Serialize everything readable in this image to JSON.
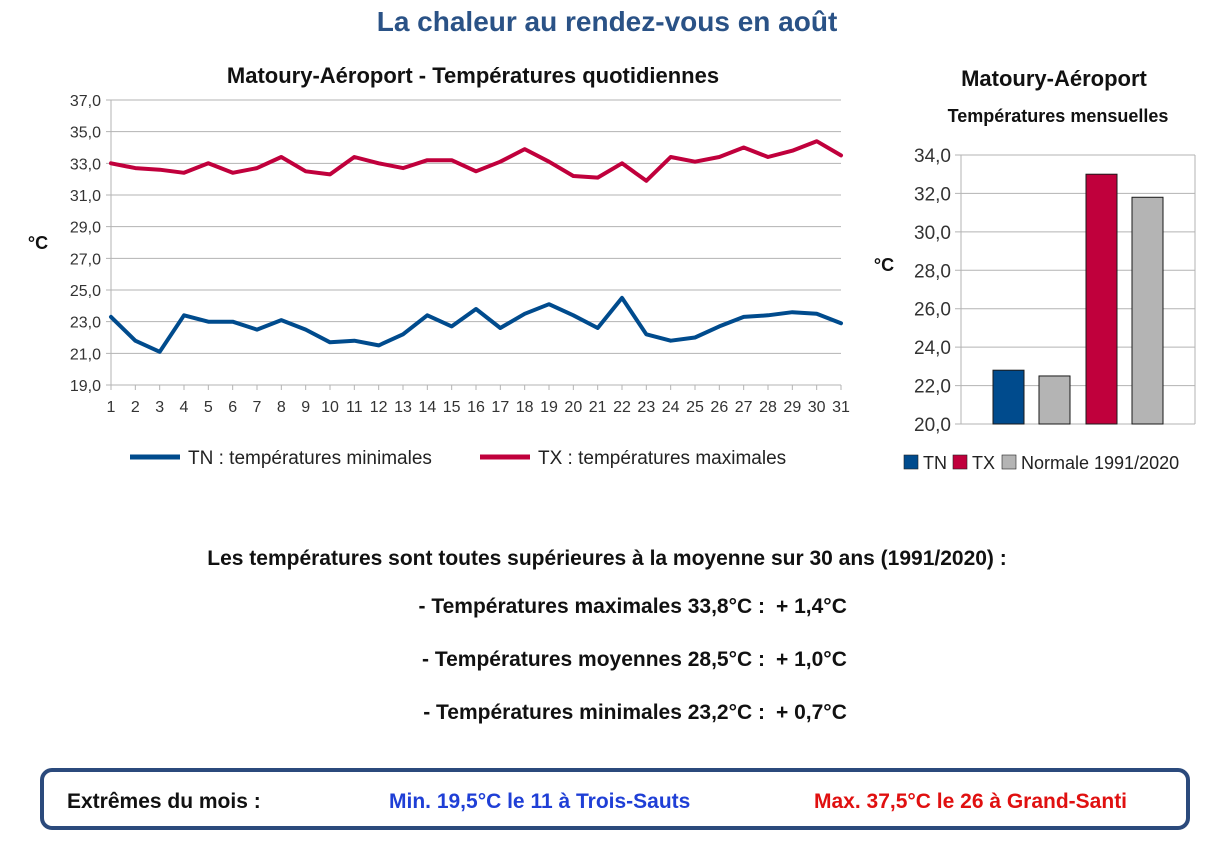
{
  "title": "La chaleur au rendez-vous en août",
  "chart_data": [
    {
      "type": "line",
      "title": "Matoury-Aéroport - Températures quotidiennes",
      "ylabel": "°C",
      "xlabel": "",
      "ylim": [
        19,
        37
      ],
      "yticks": [
        "19,0",
        "21,0",
        "23,0",
        "25,0",
        "27,0",
        "29,0",
        "31,0",
        "33,0",
        "35,0",
        "37,0"
      ],
      "x": [
        1,
        2,
        3,
        4,
        5,
        6,
        7,
        8,
        9,
        10,
        11,
        12,
        13,
        14,
        15,
        16,
        17,
        18,
        19,
        20,
        21,
        22,
        23,
        24,
        25,
        26,
        27,
        28,
        29,
        30,
        31
      ],
      "grid": true,
      "legend_position": "bottom",
      "series": [
        {
          "name": "TN : températures minimales",
          "color": "#004b8d",
          "values": [
            23.3,
            21.8,
            21.1,
            23.4,
            23.0,
            23.0,
            22.5,
            23.1,
            22.5,
            21.7,
            21.8,
            21.5,
            22.2,
            23.4,
            22.7,
            23.8,
            22.6,
            23.5,
            24.1,
            23.4,
            22.6,
            24.5,
            22.2,
            21.8,
            22.0,
            22.7,
            23.3,
            23.4,
            23.6,
            23.5,
            22.9
          ]
        },
        {
          "name": "TX : températures maximales",
          "color": "#c0003c",
          "values": [
            33.0,
            32.7,
            32.6,
            32.4,
            33.0,
            32.4,
            32.7,
            33.4,
            32.5,
            32.3,
            33.4,
            33.0,
            32.7,
            33.2,
            33.2,
            32.5,
            33.1,
            33.9,
            33.1,
            32.2,
            32.1,
            33.0,
            31.9,
            33.4,
            33.1,
            33.4,
            34.0,
            33.4,
            33.8,
            34.4,
            33.5
          ]
        }
      ]
    },
    {
      "type": "bar",
      "title": "Matoury-Aéroport",
      "subtitle": "Températures mensuelles",
      "ylabel": "°C",
      "ylim": [
        20,
        34
      ],
      "yticks": [
        "20,0",
        "22,0",
        "24,0",
        "26,0",
        "28,0",
        "30,0",
        "32,0",
        "34,0"
      ],
      "legend_position": "bottom",
      "bars": [
        {
          "series": "TN",
          "value": 22.8,
          "color": "#004b8d"
        },
        {
          "series": "Normale 1991/2020",
          "value": 22.5,
          "color": "#b4b4b4"
        },
        {
          "series": "TX",
          "value": 33.0,
          "color": "#c0003c"
        },
        {
          "series": "Normale 1991/2020",
          "value": 31.8,
          "color": "#b4b4b4"
        }
      ],
      "legend": [
        {
          "name": "TN",
          "color": "#004b8d"
        },
        {
          "name": "TX",
          "color": "#c0003c"
        },
        {
          "name": "Normale 1991/2020",
          "color": "#b4b4b4"
        }
      ]
    }
  ],
  "summary": {
    "intro": "Les températures sont toutes supérieures à la moyenne sur 30 ans (1991/2020) :",
    "lines": [
      {
        "label": "- Températures maximales 33,8°C :",
        "delta": "+ 1,4°C"
      },
      {
        "label": "- Températures moyennes 28,5°C :",
        "delta": "+ 1,0°C"
      },
      {
        "label": "- Températures minimales 23,2°C :",
        "delta": "+ 0,7°C"
      }
    ]
  },
  "extremes": {
    "label": "Extrêmes du mois :",
    "min": "Min. 19,5°C le 11 à Trois-Sauts",
    "max": "Max. 37,5°C le 26 à Grand-Santi",
    "min_color": "#1f3fd6",
    "max_color": "#e01010"
  }
}
